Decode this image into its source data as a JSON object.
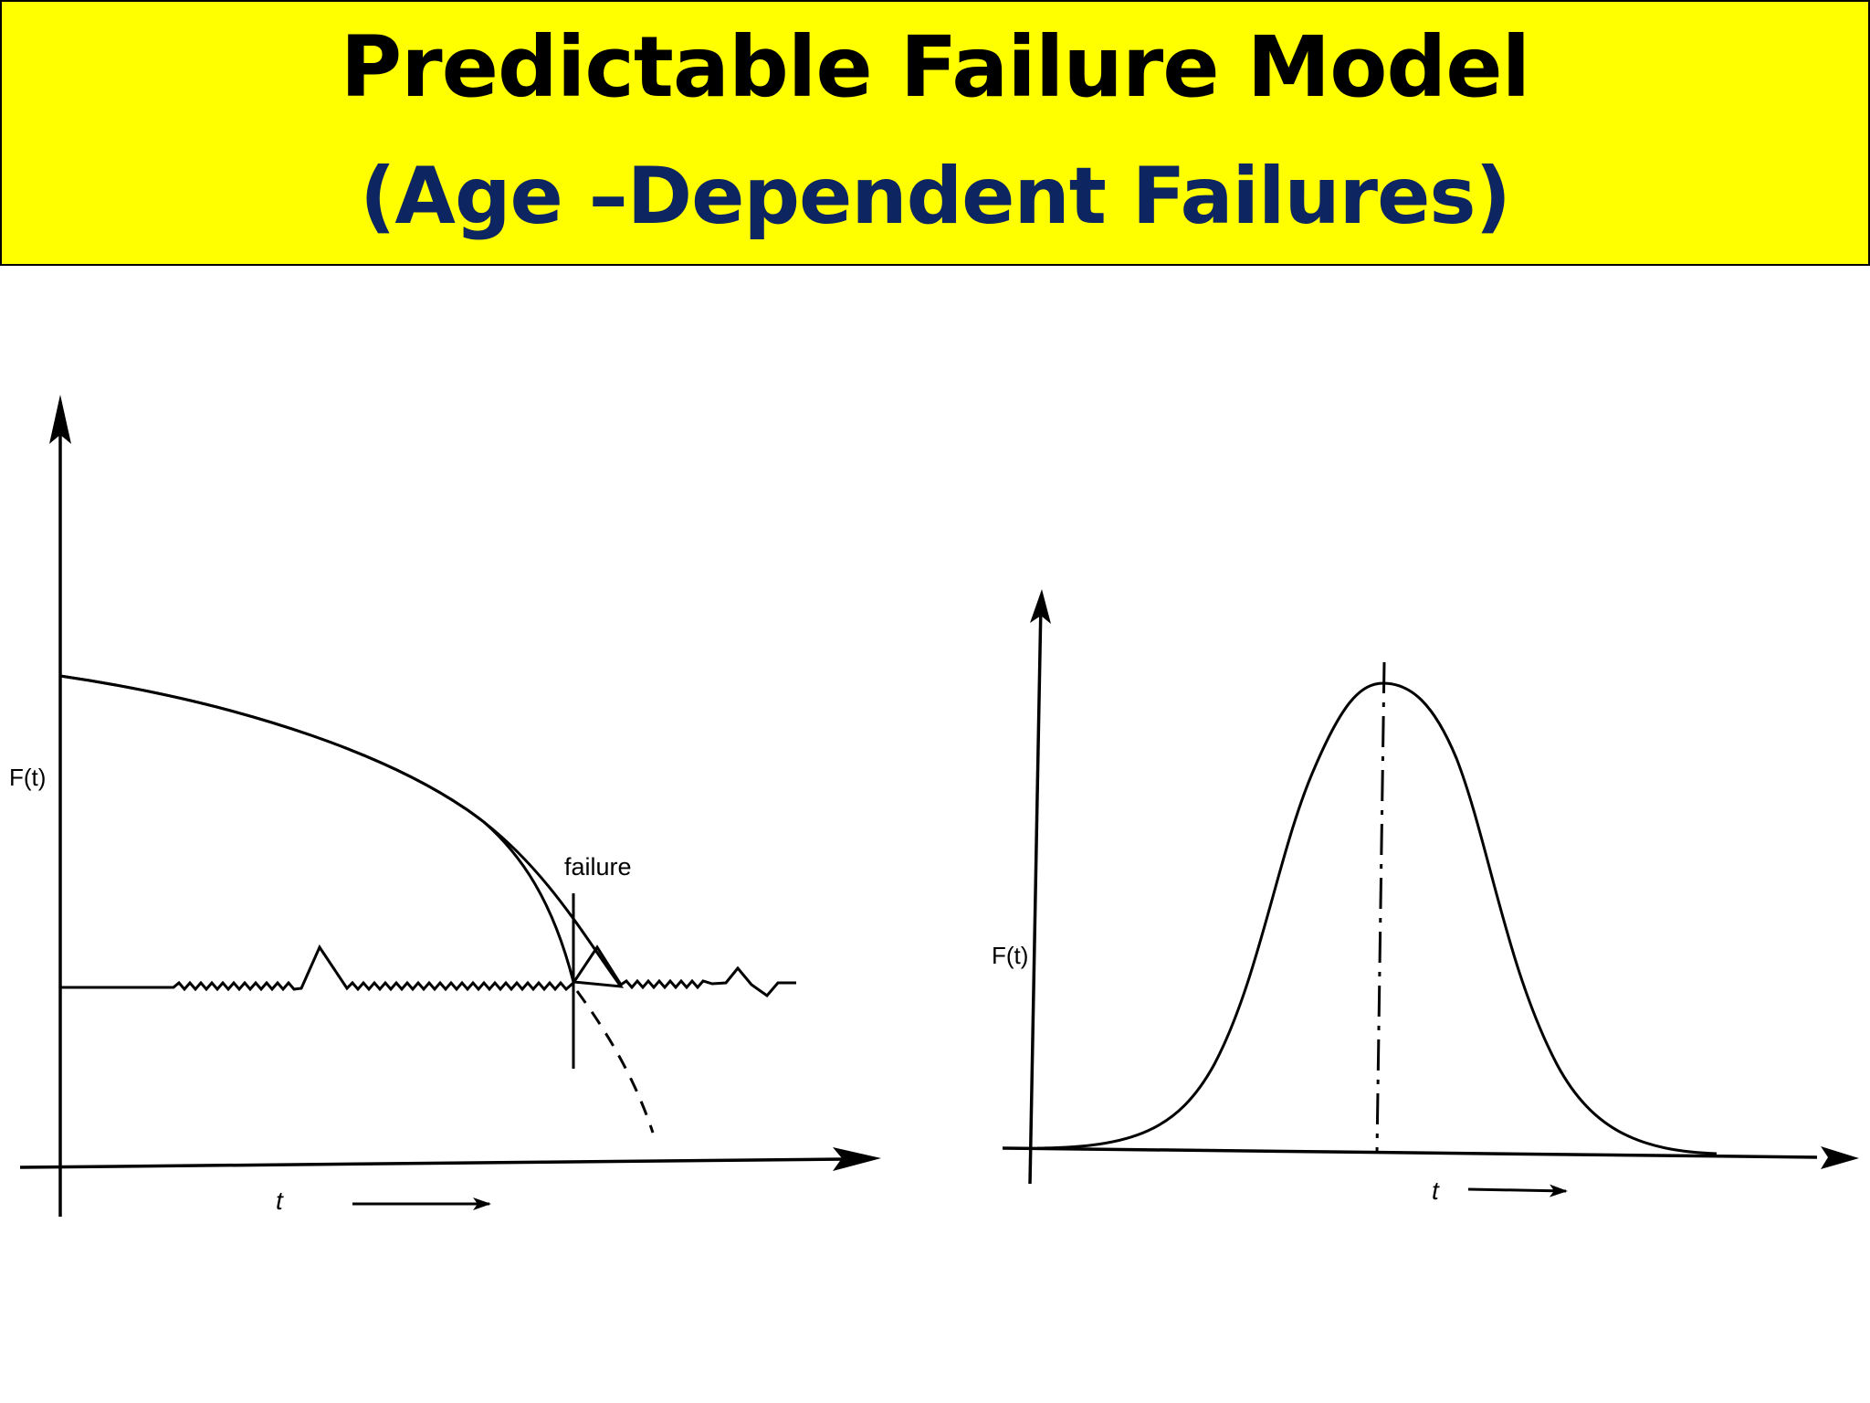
{
  "slide": {
    "title": "Predictable Failure Model",
    "subtitle": "(Age –Dependent Failures)",
    "colors": {
      "banner_background": "#ffff00",
      "title_text": "#000000",
      "subtitle_text": "#0d2560",
      "line": "#000000"
    }
  },
  "diagrams": {
    "left": {
      "y_axis_label": "F(t)",
      "x_axis_label": "t",
      "annotation": "failure"
    },
    "right": {
      "y_axis_label": "F(t)",
      "x_axis_label": "t"
    }
  }
}
